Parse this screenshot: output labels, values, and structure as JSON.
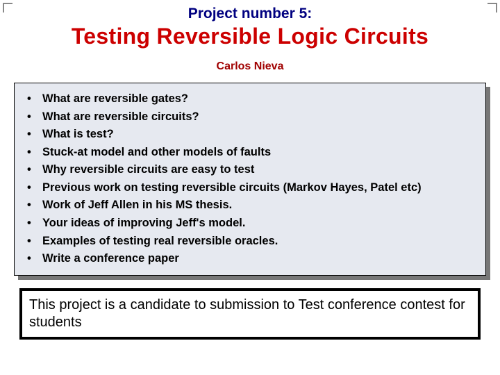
{
  "pretitle": "Project number 5:",
  "title": "Testing Reversible Logic Circuits",
  "author": "Carlos Nieva",
  "bullets": [
    "What are reversible gates?",
    "What are reversible circuits?",
    "What is test?",
    "Stuck-at model and other models of faults",
    "Why reversible circuits are easy to test",
    "Previous work on testing reversible circuits (Markov Hayes, Patel etc)",
    "Work of Jeff Allen in his MS thesis.",
    "Your ideas of improving Jeff's model.",
    "Examples of testing real reversible oracles.",
    "Write a conference paper"
  ],
  "note": "This project is a candidate to submission to Test conference contest for students",
  "colors": {
    "pretitle": "#000080",
    "title": "#cc0000",
    "author": "#a00000",
    "bullets_bg": "#e6e9f0",
    "shadow": "#777777",
    "text": "#000000",
    "background": "#ffffff"
  },
  "fontsizes": {
    "pretitle": 21,
    "title": 32,
    "author": 16,
    "bullet": 16.5,
    "note": 20
  }
}
